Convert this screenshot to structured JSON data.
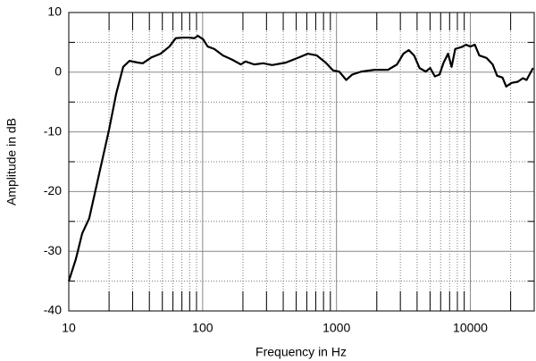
{
  "chart_data": {
    "type": "line",
    "xlabel": "Frequency in Hz",
    "ylabel": "Amplitude in dB",
    "xscale": "log",
    "grid": true,
    "xlim": [
      10,
      30000
    ],
    "ylim": [
      -40,
      10
    ],
    "xticks": [
      10,
      100,
      1000,
      10000
    ],
    "xminorticks": [
      20,
      30,
      40,
      50,
      60,
      70,
      80,
      90,
      200,
      300,
      400,
      500,
      600,
      700,
      800,
      900,
      2000,
      3000,
      4000,
      5000,
      6000,
      7000,
      8000,
      9000,
      20000
    ],
    "yticks": [
      10,
      0,
      -10,
      -20,
      -30,
      -40
    ],
    "yminorticks": [
      5,
      -5,
      -15,
      -25,
      -35
    ],
    "series": [
      {
        "color": "#000000",
        "x": [
          10,
          11.3,
          12.6,
          14.2,
          20,
          22.6,
          25.5,
          28.4,
          33,
          35.7,
          41.6,
          48.5,
          56.5,
          63,
          71,
          79,
          87,
          92,
          101,
          109,
          122,
          142,
          166,
          193,
          209,
          243,
          284,
          330,
          417,
          527,
          610,
          713,
          831,
          942,
          1047,
          1183,
          1311,
          1531,
          1931,
          2426,
          2833,
          3162,
          3467,
          3802,
          4169,
          4642,
          5012,
          5430,
          5880,
          6310,
          6812,
          7244,
          7710,
          8577,
          9260,
          10000,
          10800,
          11660,
          13190,
          14680,
          15850,
          17380,
          18530,
          20300,
          22600,
          24700,
          26300,
          29400
        ],
        "values": [
          -35,
          -31.3,
          -27,
          -24.5,
          -9.6,
          -3.6,
          0.9,
          1.9,
          1.6,
          1.5,
          2.5,
          3.1,
          4.3,
          5.7,
          5.8,
          5.8,
          5.7,
          6.1,
          5.5,
          4.3,
          3.9,
          2.8,
          2.1,
          1.3,
          1.8,
          1.3,
          1.5,
          1.2,
          1.6,
          2.5,
          3.1,
          2.8,
          1.6,
          0.3,
          0.1,
          -1.3,
          -0.4,
          0.1,
          0.4,
          0.4,
          1.3,
          3.1,
          3.7,
          2.8,
          0.7,
          0.1,
          0.7,
          -0.7,
          -0.4,
          1.6,
          3.1,
          0.9,
          3.9,
          4.2,
          4.6,
          4.3,
          4.6,
          2.8,
          2.4,
          1.3,
          -0.6,
          -0.9,
          -2.4,
          -1.8,
          -1.6,
          -1.0,
          -1.3,
          0.7
        ]
      }
    ]
  }
}
